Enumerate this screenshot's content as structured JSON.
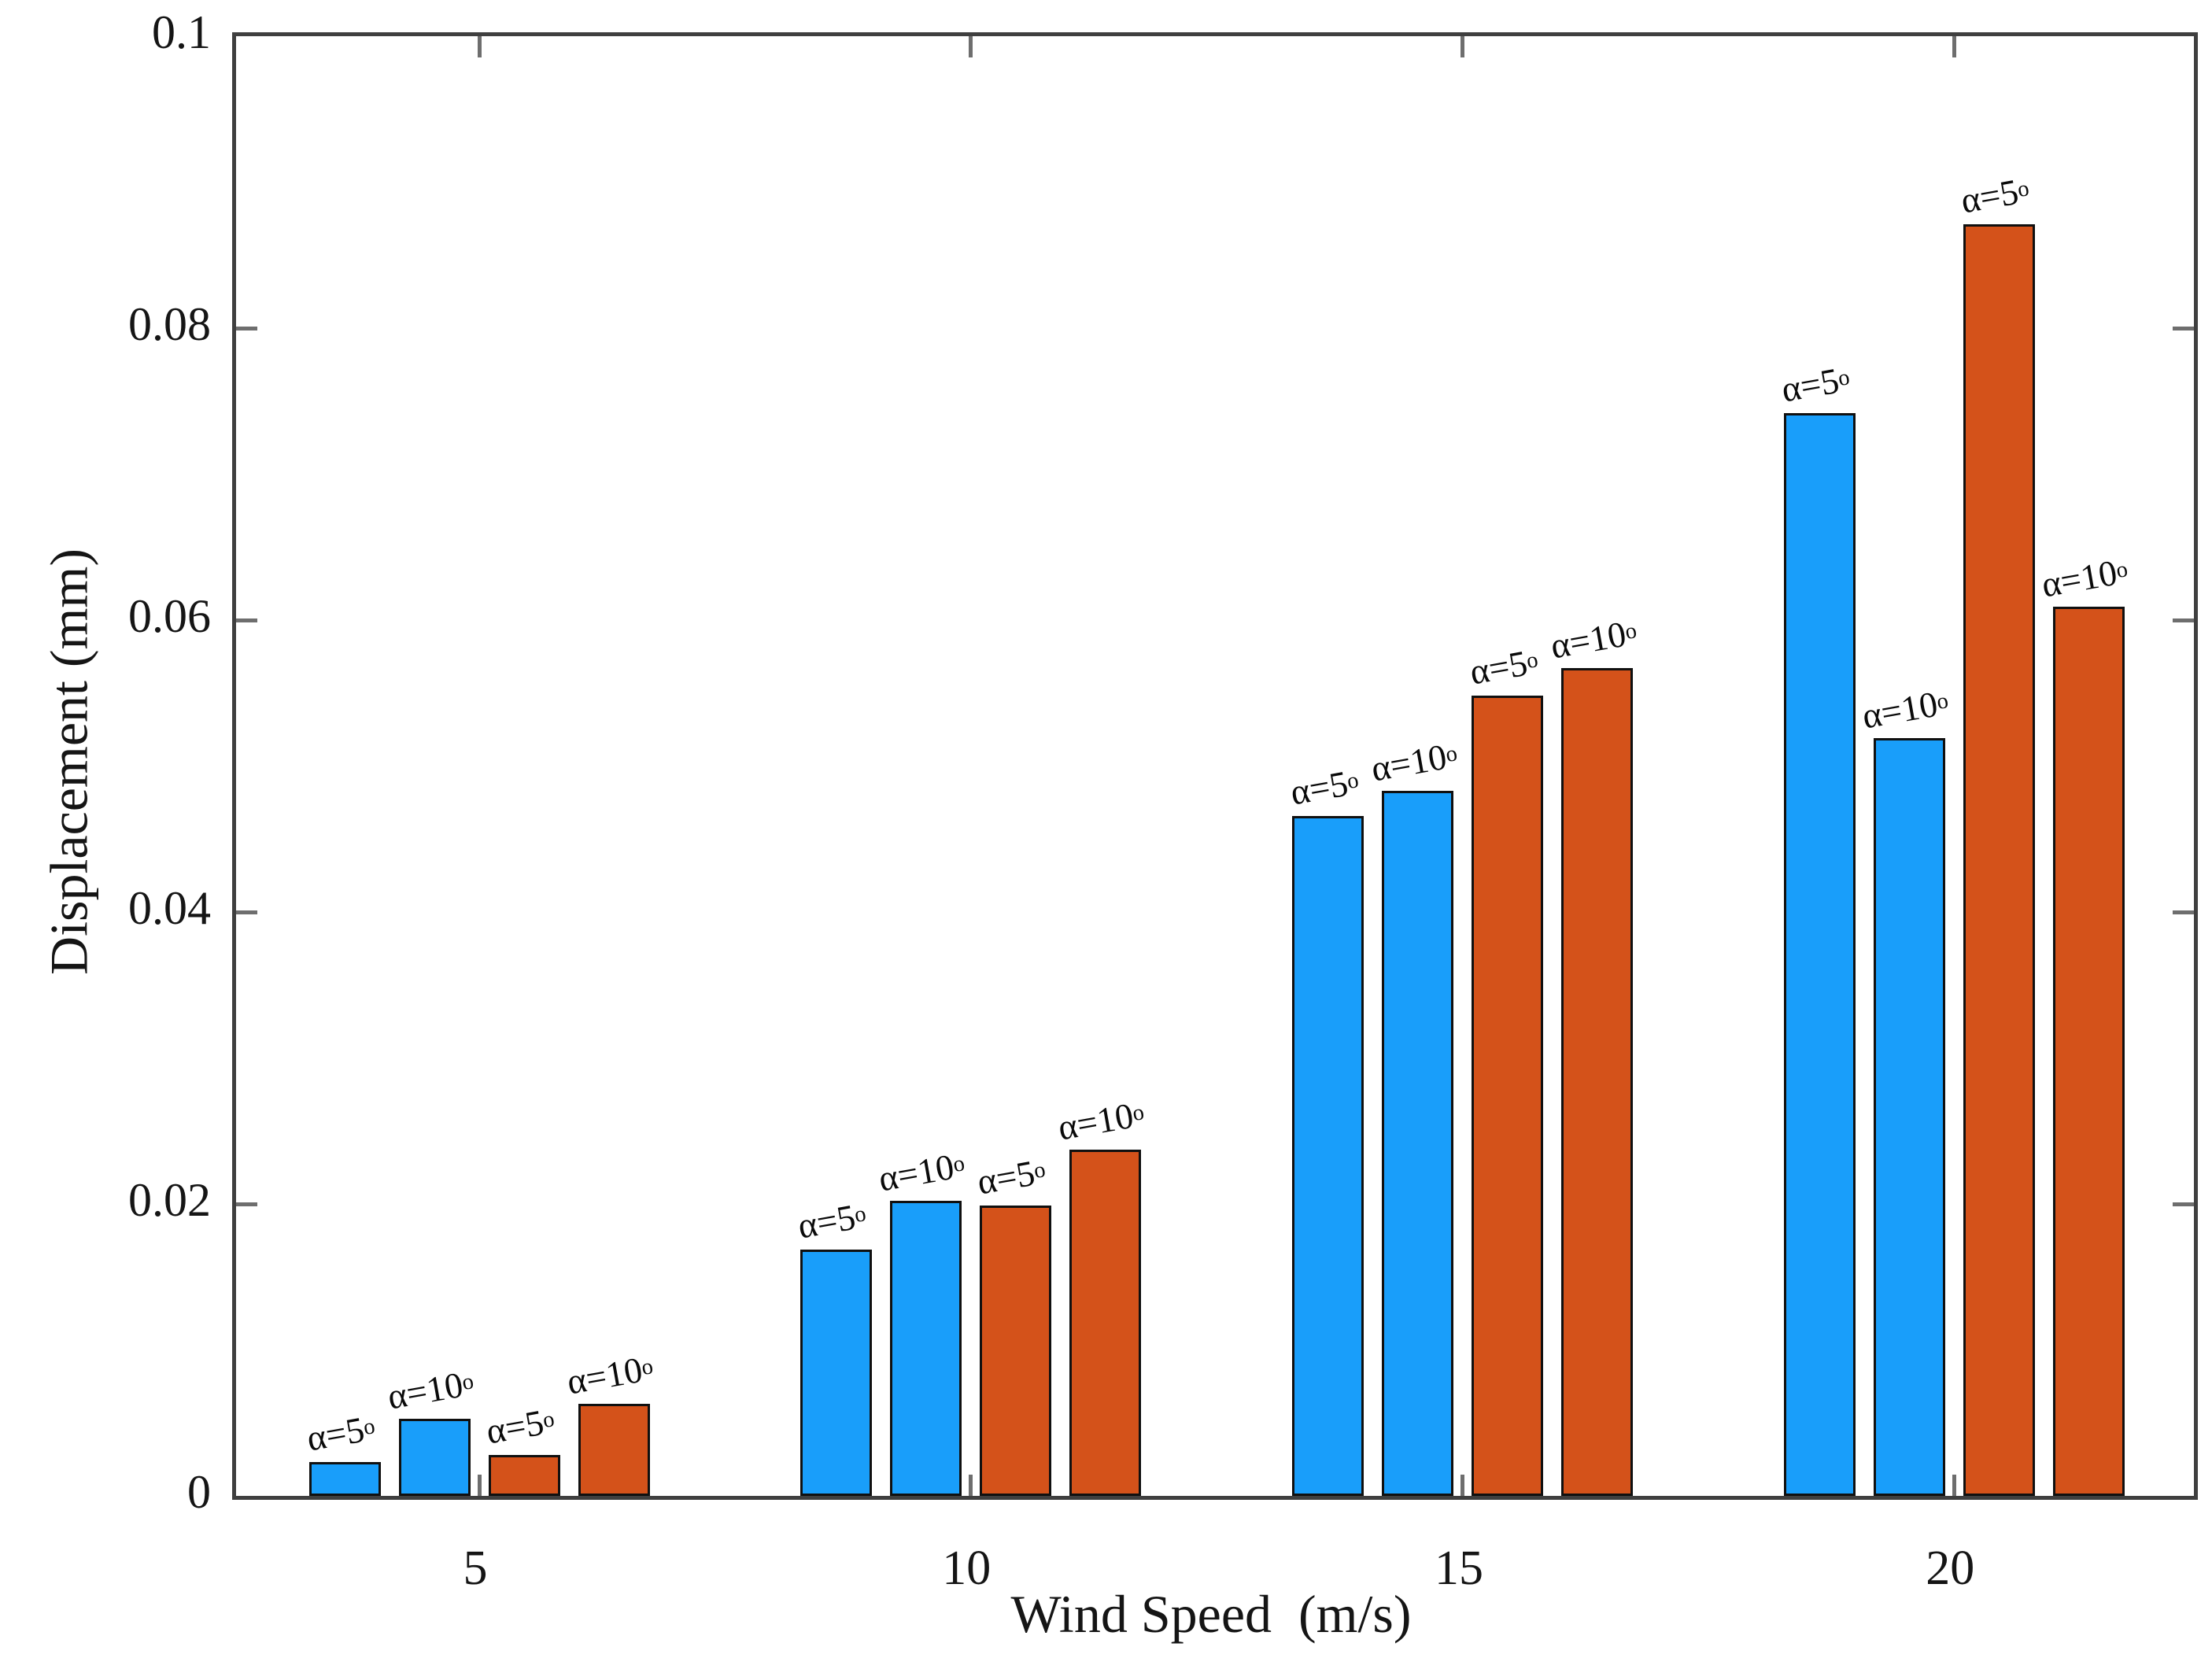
{
  "chart_data": {
    "type": "bar",
    "title": "",
    "xlabel": "Wind Speed  (m/s)",
    "ylabel": "Displacement (mm)",
    "x_categories": [
      "5",
      "10",
      "15",
      "20"
    ],
    "y_tick_labels": [
      "0",
      "0.02",
      "0.04",
      "0.06",
      "0.08",
      "0.1"
    ],
    "ylim": [
      0,
      0.1
    ],
    "grid": "off",
    "legend": "none",
    "box": "on",
    "tick_direction": "in",
    "annotation_superscript": "o",
    "colors": {
      "blue": "#199EFA",
      "orange": "#D4521A",
      "bar_edge": "#101010",
      "axis": "#3f3f3f"
    },
    "group_centers_frac": [
      0.1242,
      0.3751,
      0.6266,
      0.8775
    ],
    "groups": [
      {
        "category": "5",
        "bars": [
          {
            "series": "blue",
            "label": "α=5",
            "value": 0.0023
          },
          {
            "series": "blue",
            "label": "α=10",
            "value": 0.0053
          },
          {
            "series": "orange",
            "label": "α=5",
            "value": 0.0028
          },
          {
            "series": "orange",
            "label": "α=10",
            "value": 0.0063
          }
        ]
      },
      {
        "category": "10",
        "bars": [
          {
            "series": "blue",
            "label": "α=5",
            "value": 0.0169
          },
          {
            "series": "blue",
            "label": "α=10",
            "value": 0.0202
          },
          {
            "series": "orange",
            "label": "α=5",
            "value": 0.0199
          },
          {
            "series": "orange",
            "label": "α=10",
            "value": 0.0237
          }
        ]
      },
      {
        "category": "15",
        "bars": [
          {
            "series": "blue",
            "label": "α=5",
            "value": 0.0466
          },
          {
            "series": "blue",
            "label": "α=10",
            "value": 0.0483
          },
          {
            "series": "orange",
            "label": "α=5",
            "value": 0.0548
          },
          {
            "series": "orange",
            "label": "α=10",
            "value": 0.0567
          }
        ]
      },
      {
        "category": "20",
        "bars": [
          {
            "series": "blue",
            "label": "α=5",
            "value": 0.0742
          },
          {
            "series": "blue",
            "label": "α=10",
            "value": 0.0519
          },
          {
            "series": "orange",
            "label": "α=5",
            "value": 0.0871
          },
          {
            "series": "orange",
            "label": "α=10",
            "value": 0.0609
          }
        ]
      }
    ]
  }
}
